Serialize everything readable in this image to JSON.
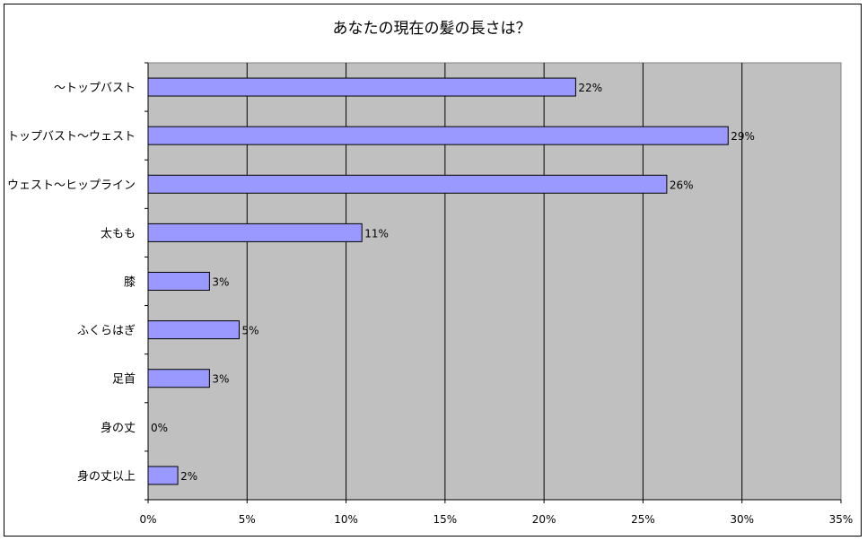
{
  "chart_data": {
    "type": "bar",
    "orientation": "horizontal",
    "title": "あなたの現在の髪の長さは？",
    "categories": [
      "～トップバスト",
      "トップバスト～ウェスト",
      "ウェスト～ヒップライン",
      "太もも",
      "膝",
      "ふくらはぎ",
      "足首",
      "身の丈",
      "身の丈以上"
    ],
    "values": [
      21.6,
      29.3,
      26.2,
      10.8,
      3.1,
      4.6,
      3.1,
      0,
      1.5
    ],
    "data_labels": [
      "22%",
      "29%",
      "26%",
      "11%",
      "3%",
      "5%",
      "3%",
      "0%",
      "2%"
    ],
    "xlim": [
      0,
      35
    ],
    "x_ticks": [
      "0%",
      "5%",
      "10%",
      "15%",
      "20%",
      "25%",
      "30%",
      "35%"
    ],
    "grid": true,
    "colors": {
      "bar": "#9999ff",
      "plot_background": "#c0c0c0"
    }
  }
}
